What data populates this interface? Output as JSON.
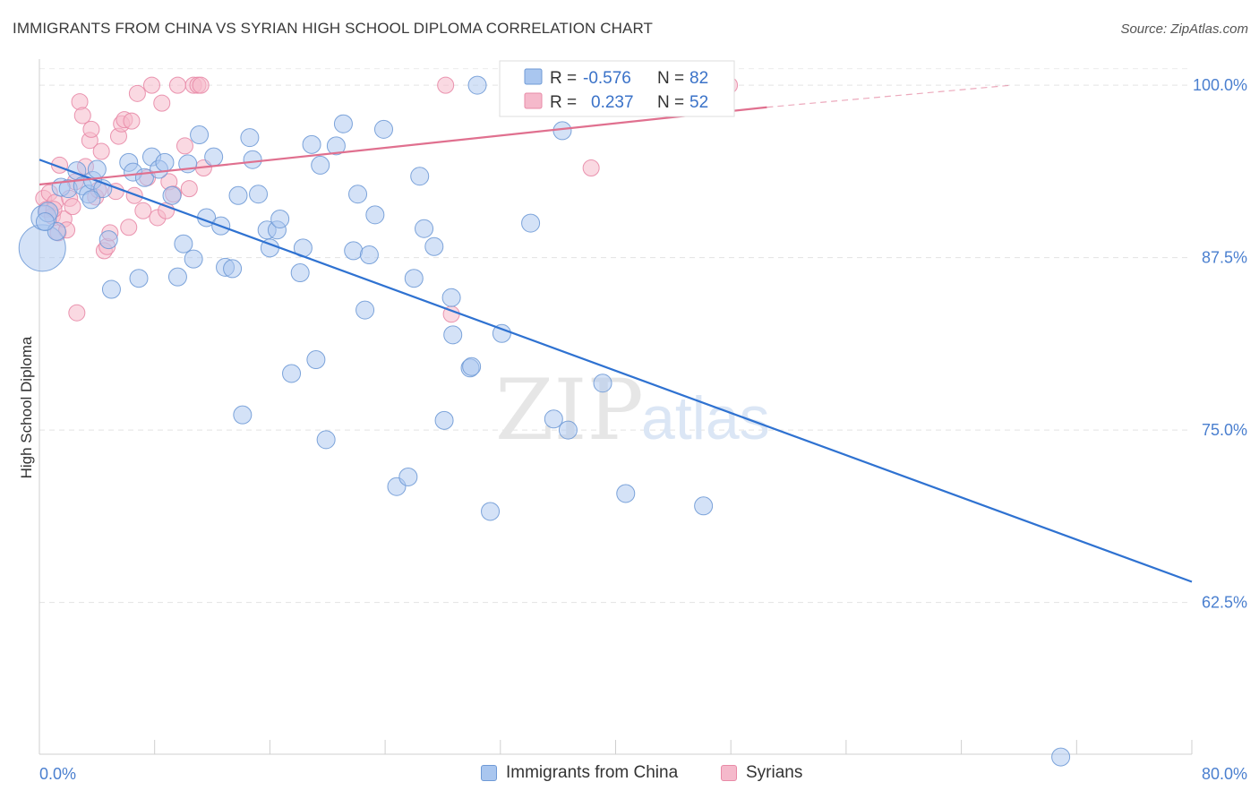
{
  "header": {
    "title": "IMMIGRANTS FROM CHINA VS SYRIAN HIGH SCHOOL DIPLOMA CORRELATION CHART",
    "source": "Source: ZipAtlas.com"
  },
  "colors": {
    "china_fill": "#a9c6ef",
    "china_stroke": "#6f9ad6",
    "china_line": "#2f72d1",
    "syria_fill": "#f5b9cb",
    "syria_stroke": "#e88aa7",
    "syria_line": "#e0708f",
    "axis_label": "#4a7fcf",
    "grid": "#e3e3e3"
  },
  "legend_box": {
    "rows": [
      {
        "r_label": "R = ",
        "r_value": "-0.576",
        "n_label": "N = ",
        "n_value": "82"
      },
      {
        "r_label": "R = ",
        "r_value": "0.237",
        "n_label": "N = ",
        "n_value": "52"
      }
    ]
  },
  "legend_bottom": {
    "series1": "Immigrants from China",
    "series2": "Syrians"
  },
  "watermark": {
    "part1": "ZIP",
    "part2": "atlas"
  },
  "chart_data": {
    "type": "scatter",
    "title": "IMMIGRANTS FROM CHINA VS SYRIAN HIGH SCHOOL DIPLOMA CORRELATION CHART",
    "xlabel": "",
    "ylabel": "High School Diploma",
    "xlim": [
      0,
      80
    ],
    "ylim": [
      51.5,
      101.5
    ],
    "x_tick_labels": [
      "0.0%",
      "80.0%"
    ],
    "y_ticks": [
      {
        "value": 100,
        "label": "100.0%"
      },
      {
        "value": 87.5,
        "label": "87.5%"
      },
      {
        "value": 75,
        "label": "75.0%"
      },
      {
        "value": 62.5,
        "label": "62.5%"
      }
    ],
    "grid": true,
    "legend_placement": "top-center",
    "series": [
      {
        "name": "Immigrants from China",
        "r": -0.576,
        "n": 82,
        "trend": {
          "x": [
            0,
            80
          ],
          "y": [
            94.6,
            64.0
          ]
        },
        "points": [
          [
            0.2,
            88.2
          ],
          [
            0.3,
            90.4
          ],
          [
            0.6,
            90.8
          ],
          [
            1.2,
            89.4
          ],
          [
            1.5,
            92.6
          ],
          [
            2.0,
            92.5
          ],
          [
            2.6,
            93.8
          ],
          [
            3.0,
            92.7
          ],
          [
            3.4,
            92.1
          ],
          [
            3.7,
            93.1
          ],
          [
            4.0,
            93.9
          ],
          [
            4.4,
            92.5
          ],
          [
            4.8,
            88.8
          ],
          [
            5.0,
            85.2
          ],
          [
            6.2,
            94.4
          ],
          [
            6.5,
            93.7
          ],
          [
            6.9,
            86.0
          ],
          [
            7.3,
            93.3
          ],
          [
            7.8,
            94.8
          ],
          [
            8.3,
            93.9
          ],
          [
            8.7,
            94.4
          ],
          [
            9.6,
            86.1
          ],
          [
            10.0,
            88.5
          ],
          [
            10.3,
            94.3
          ],
          [
            10.7,
            87.4
          ],
          [
            11.1,
            96.4
          ],
          [
            11.6,
            90.4
          ],
          [
            12.1,
            94.8
          ],
          [
            12.6,
            89.8
          ],
          [
            12.9,
            86.8
          ],
          [
            13.4,
            86.7
          ],
          [
            13.8,
            92.0
          ],
          [
            14.1,
            76.1
          ],
          [
            14.6,
            96.2
          ],
          [
            14.8,
            94.6
          ],
          [
            15.2,
            92.1
          ],
          [
            15.8,
            89.5
          ],
          [
            16.0,
            88.2
          ],
          [
            16.5,
            89.5
          ],
          [
            16.7,
            90.3
          ],
          [
            17.5,
            79.1
          ],
          [
            18.1,
            86.4
          ],
          [
            18.3,
            88.2
          ],
          [
            18.9,
            95.7
          ],
          [
            19.2,
            80.1
          ],
          [
            19.5,
            94.2
          ],
          [
            19.9,
            74.3
          ],
          [
            20.6,
            95.6
          ],
          [
            21.1,
            97.2
          ],
          [
            21.8,
            88.0
          ],
          [
            22.1,
            92.1
          ],
          [
            22.6,
            83.7
          ],
          [
            22.9,
            87.7
          ],
          [
            23.3,
            90.6
          ],
          [
            23.9,
            96.8
          ],
          [
            24.8,
            70.9
          ],
          [
            25.6,
            71.6
          ],
          [
            26.0,
            86.0
          ],
          [
            26.4,
            93.4
          ],
          [
            26.7,
            89.6
          ],
          [
            27.4,
            88.3
          ],
          [
            28.1,
            75.7
          ],
          [
            28.6,
            84.6
          ],
          [
            28.7,
            81.9
          ],
          [
            29.9,
            79.5
          ],
          [
            30.0,
            79.6
          ],
          [
            30.4,
            100.0
          ],
          [
            31.3,
            69.1
          ],
          [
            32.1,
            82.0
          ],
          [
            32.9,
            100.0
          ],
          [
            33.1,
            99.4
          ],
          [
            34.1,
            90.0
          ],
          [
            35.7,
            75.8
          ],
          [
            36.3,
            96.7
          ],
          [
            36.7,
            75.0
          ],
          [
            39.1,
            78.4
          ],
          [
            40.7,
            70.4
          ],
          [
            46.1,
            69.5
          ],
          [
            0.4,
            90.1
          ],
          [
            3.6,
            91.7
          ],
          [
            9.2,
            92.0
          ],
          [
            70.9,
            51.3
          ]
        ],
        "sizes": [
          26,
          14,
          11,
          10,
          10,
          10,
          10,
          10,
          10,
          10,
          10,
          10,
          10,
          10,
          10,
          10,
          10,
          10,
          10,
          10,
          10,
          10,
          10,
          10,
          10,
          10,
          10,
          10,
          10,
          10,
          10,
          10,
          10,
          10,
          10,
          10,
          10,
          10,
          10,
          10,
          10,
          10,
          10,
          10,
          10,
          10,
          10,
          10,
          10,
          10,
          10,
          10,
          10,
          10,
          10,
          10,
          10,
          10,
          10,
          10,
          10,
          10,
          10,
          10,
          10,
          10,
          10,
          10,
          10,
          10,
          10,
          10,
          10,
          10,
          10,
          10,
          10,
          10,
          10,
          10,
          10,
          10
        ]
      },
      {
        "name": "Syrians",
        "r": 0.237,
        "n": 52,
        "trend": {
          "x": [
            0,
            50.5,
            67.5
          ],
          "y": [
            92.8,
            98.4,
            100.0
          ]
        },
        "points": [
          [
            0.3,
            91.8
          ],
          [
            0.5,
            91.0
          ],
          [
            0.7,
            92.2
          ],
          [
            0.9,
            90.5
          ],
          [
            1.1,
            91.5
          ],
          [
            1.3,
            89.3
          ],
          [
            1.4,
            94.2
          ],
          [
            1.7,
            90.3
          ],
          [
            1.9,
            89.5
          ],
          [
            2.1,
            91.8
          ],
          [
            2.3,
            91.2
          ],
          [
            2.5,
            93.0
          ],
          [
            2.6,
            83.5
          ],
          [
            2.8,
            98.8
          ],
          [
            3.0,
            97.8
          ],
          [
            3.2,
            94.1
          ],
          [
            3.5,
            96.0
          ],
          [
            3.6,
            96.8
          ],
          [
            3.9,
            91.9
          ],
          [
            4.1,
            92.4
          ],
          [
            4.3,
            95.2
          ],
          [
            4.5,
            88.0
          ],
          [
            4.7,
            88.3
          ],
          [
            4.9,
            89.3
          ],
          [
            5.3,
            92.3
          ],
          [
            5.5,
            96.3
          ],
          [
            5.7,
            97.2
          ],
          [
            5.9,
            97.5
          ],
          [
            6.2,
            89.7
          ],
          [
            6.4,
            97.4
          ],
          [
            6.6,
            92.0
          ],
          [
            6.8,
            99.4
          ],
          [
            7.2,
            90.9
          ],
          [
            7.5,
            93.3
          ],
          [
            7.8,
            100.0
          ],
          [
            8.2,
            90.4
          ],
          [
            8.5,
            98.7
          ],
          [
            8.8,
            90.9
          ],
          [
            9.0,
            93.0
          ],
          [
            9.3,
            92.1
          ],
          [
            9.6,
            100.0
          ],
          [
            10.1,
            95.6
          ],
          [
            10.4,
            92.5
          ],
          [
            10.7,
            100.0
          ],
          [
            11.0,
            100.0
          ],
          [
            11.2,
            100.0
          ],
          [
            11.4,
            94.0
          ],
          [
            28.2,
            100.0
          ],
          [
            28.6,
            83.4
          ],
          [
            38.3,
            94.0
          ],
          [
            47.9,
            100.0
          ],
          [
            1.0,
            91.0
          ]
        ]
      }
    ]
  }
}
